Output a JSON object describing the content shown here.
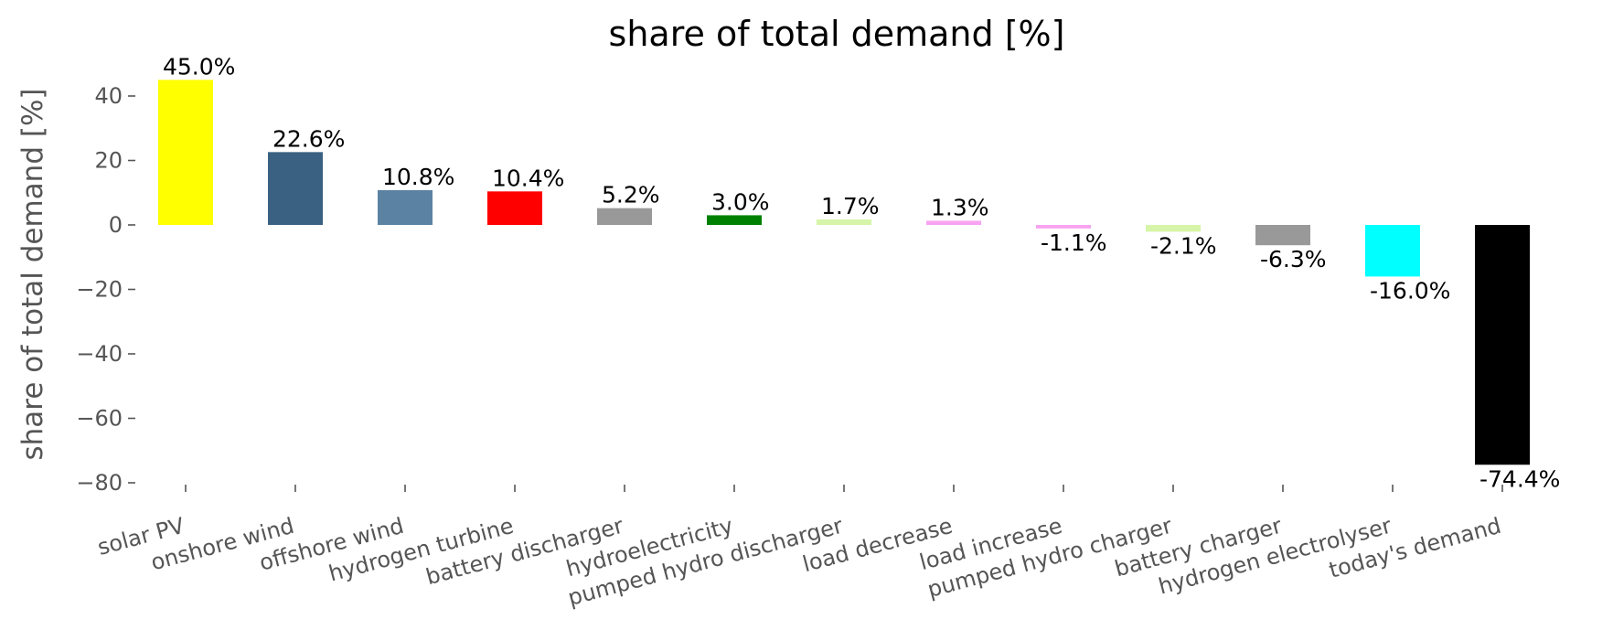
{
  "chart_data": {
    "type": "bar",
    "title": "share of total demand [%]",
    "xlabel": "",
    "ylabel": "share of total demand [%]",
    "ylim": [
      -80,
      45
    ],
    "yticks": [
      40,
      20,
      0,
      -20,
      -40,
      -60,
      -80
    ],
    "ytick_labels": [
      "40",
      "20",
      "0",
      "−20",
      "−40",
      "−60",
      "−80"
    ],
    "grid": false,
    "categories": [
      "solar PV",
      "onshore wind",
      "offshore wind",
      "hydrogen turbine",
      "battery discharger",
      "hydroelectricity",
      "pumped hydro discharger",
      "load decrease",
      "load increase",
      "pumped hydro charger",
      "battery charger",
      "hydrogen electrolyser",
      "today's demand"
    ],
    "values": [
      45.0,
      22.6,
      10.8,
      10.4,
      5.2,
      3.0,
      1.7,
      1.3,
      -1.1,
      -2.1,
      -6.3,
      -16.0,
      -74.4
    ],
    "value_labels": [
      "45.0%",
      "22.6%",
      "10.8%",
      "10.4%",
      "5.2%",
      "3.0%",
      "1.7%",
      "1.3%",
      "-1.1%",
      "-2.1%",
      "-6.3%",
      "-16.0%",
      "-74.4%"
    ],
    "colors": [
      "#ffff00",
      "#3b6182",
      "#5b82a3",
      "#ff0000",
      "#999999",
      "#008000",
      "#d6f5a8",
      "#f7a3f2",
      "#f7a3f2",
      "#d6f5a8",
      "#999999",
      "#00ffff",
      "#000000"
    ]
  }
}
